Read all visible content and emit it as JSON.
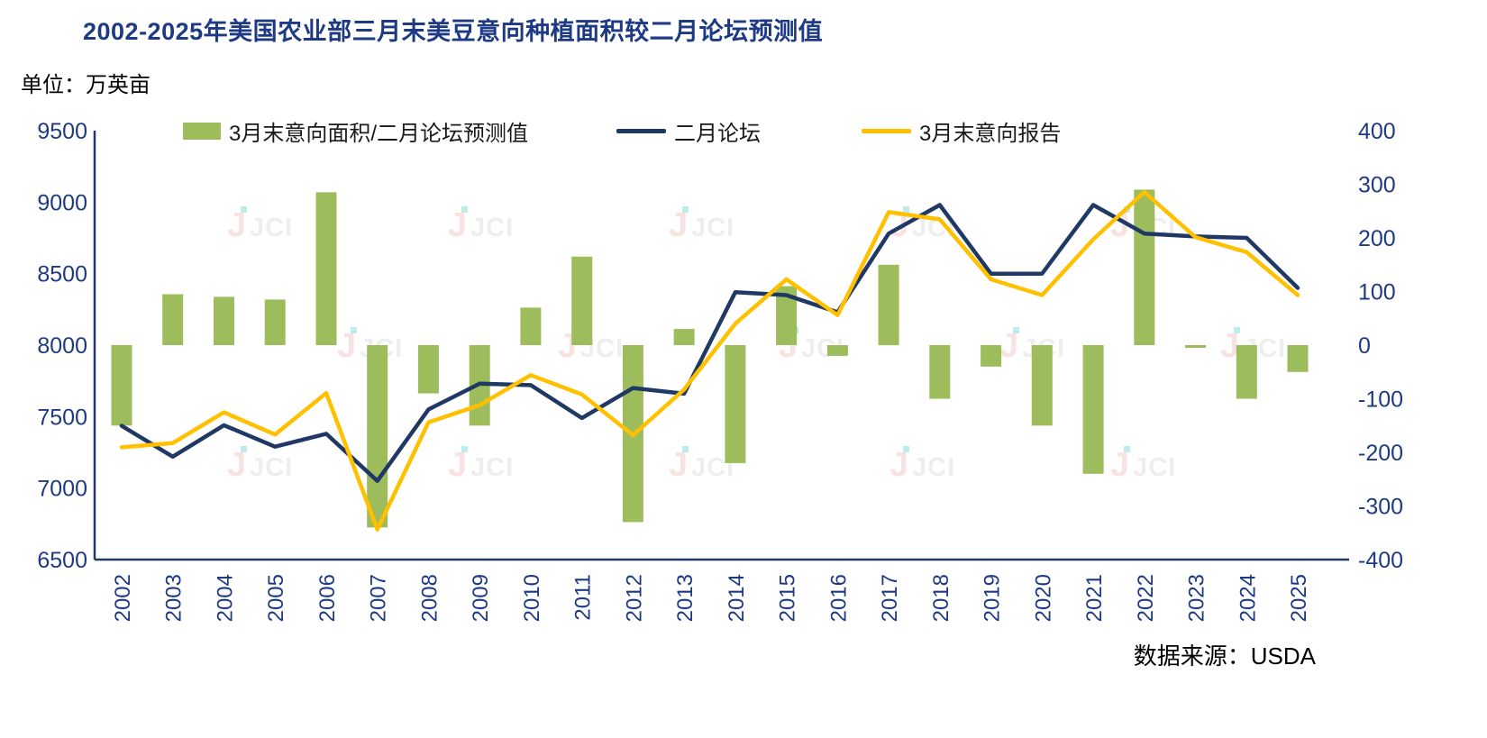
{
  "title": "2002-2025年美国农业部三月末美豆意向种植面积较二月论坛预测值",
  "unit_label": "单位：万英亩",
  "source": "数据来源：USDA",
  "watermark": {
    "letter": "J",
    "text": "JCI"
  },
  "colors": {
    "bar": "#9DBC5B",
    "feb_line": "#1F3864",
    "mar_line": "#FFC000",
    "title_text": "#1F3A85",
    "axis_text": "#1F3A85",
    "axis_line": "#1F3864",
    "watermark_pink": "#F0BFBF",
    "watermark_gray": "#DADADA",
    "watermark_teal": "#6FD6D2"
  },
  "legend": [
    {
      "label": "3月末意向面积/二月论坛预测值",
      "type": "bar"
    },
    {
      "label": "二月论坛",
      "type": "line"
    },
    {
      "label": "3月末意向报告",
      "type": "line"
    }
  ],
  "chart_data": {
    "type": "bar",
    "combo": true,
    "title": "2002-2025年美国农业部三月末美豆意向种植面积较二月论坛预测值",
    "ylabel_unit": "万英亩",
    "grid": false,
    "legend_position": "top",
    "categories": [
      "2002",
      "2003",
      "2004",
      "2005",
      "2006",
      "2007",
      "2008",
      "2009",
      "2010",
      "2011",
      "2012",
      "2013",
      "2014",
      "2015",
      "2016",
      "2017",
      "2018",
      "2019",
      "2020",
      "2021",
      "2022",
      "2023",
      "2024",
      "2025"
    ],
    "series": [
      {
        "name": "3月末意向面积/二月论坛预测值",
        "chart": "bar",
        "axis": "right",
        "color_key": "bar",
        "values": [
          -150,
          95,
          90,
          85,
          285,
          -340,
          -90,
          -150,
          70,
          165,
          -330,
          30,
          -220,
          110,
          -20,
          150,
          -100,
          -40,
          -150,
          -240,
          290,
          -5,
          -100,
          -50
        ]
      },
      {
        "name": "二月论坛",
        "chart": "line",
        "axis": "left",
        "color_key": "feb_line",
        "values": [
          7435,
          7220,
          7440,
          7290,
          7380,
          7050,
          7550,
          7730,
          7720,
          7490,
          7700,
          7660,
          8370,
          8350,
          8230,
          8780,
          8980,
          8500,
          8500,
          8980,
          8780,
          8760,
          8750,
          8400
        ]
      },
      {
        "name": "3月末意向报告",
        "chart": "line",
        "axis": "left",
        "color_key": "mar_line",
        "values": [
          7285,
          7315,
          7530,
          7375,
          7665,
          6710,
          7460,
          7580,
          7790,
          7655,
          7370,
          7690,
          8150,
          8460,
          8210,
          8930,
          8880,
          8460,
          8350,
          8740,
          9070,
          8755,
          8650,
          8350
        ]
      }
    ],
    "left_axis": {
      "min": 6500,
      "max": 9500,
      "step": 500,
      "ticks": [
        9500,
        9000,
        8500,
        8000,
        7500,
        7000,
        6500
      ]
    },
    "right_axis": {
      "min": -400,
      "max": 400,
      "step": 100,
      "ticks": [
        400,
        300,
        200,
        100,
        0,
        -100,
        -200,
        -300,
        -400
      ]
    }
  }
}
